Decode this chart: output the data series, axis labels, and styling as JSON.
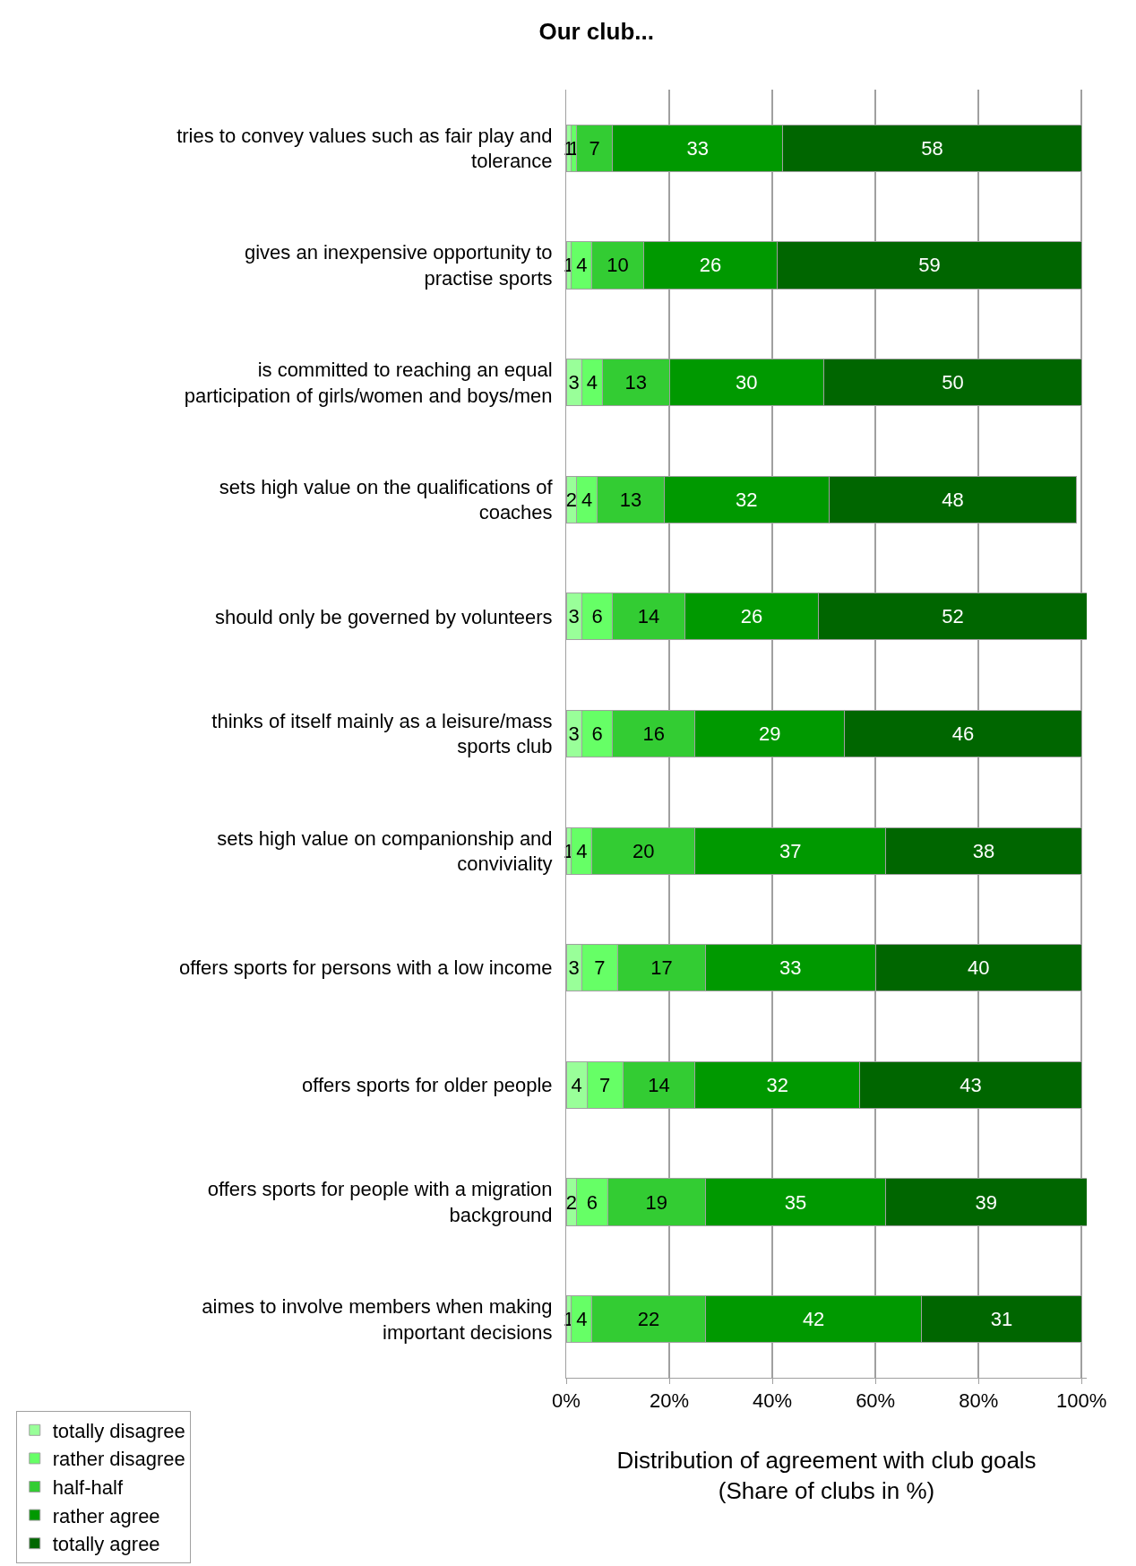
{
  "chart_data": {
    "type": "bar",
    "orientation": "horizontal",
    "stacked": true,
    "title": "Our club...",
    "xlabel": "Distribution of agreement with club goals\n(Share of clubs in %)",
    "categories": [
      "tries to convey values such as fair play and\ntolerance",
      "gives an inexpensive opportunity to\npractise sports",
      "is committed to reaching an equal\nparticipation of girls/women and boys/men",
      "sets high value on the qualifications of\ncoaches",
      "should only be governed by volunteers",
      "thinks of itself mainly as a leisure/mass\nsports club",
      "sets high value on companionship and\nconviviality",
      "offers sports for persons with a low income",
      "offers sports for older people",
      "offers sports for people with a migration\nbackground",
      "aimes to involve members when making\nimportant decisions"
    ],
    "series": [
      {
        "name": "totally disagree",
        "color": "#99ff99",
        "values": [
          1,
          1,
          3,
          2,
          3,
          3,
          1,
          3,
          4,
          2,
          1
        ]
      },
      {
        "name": "rather disagree",
        "color": "#66ff66",
        "values": [
          1,
          4,
          4,
          4,
          6,
          6,
          4,
          7,
          7,
          6,
          4
        ]
      },
      {
        "name": "half-half",
        "color": "#33cc33",
        "values": [
          7,
          10,
          13,
          13,
          14,
          16,
          20,
          17,
          14,
          19,
          22
        ]
      },
      {
        "name": "rather agree",
        "color": "#009900",
        "values": [
          33,
          26,
          30,
          32,
          26,
          29,
          37,
          33,
          32,
          35,
          42
        ]
      },
      {
        "name": "totally agree",
        "color": "#006600",
        "values": [
          58,
          59,
          50,
          48,
          52,
          46,
          38,
          40,
          43,
          39,
          31
        ]
      }
    ],
    "xlim": [
      0,
      101
    ],
    "xticks": [
      {
        "value": 0,
        "label": "0%"
      },
      {
        "value": 20,
        "label": "20%"
      },
      {
        "value": 40,
        "label": "40%"
      },
      {
        "value": 60,
        "label": "60%"
      },
      {
        "value": 80,
        "label": "80%"
      },
      {
        "value": 100,
        "label": "100%"
      }
    ],
    "grid": "x",
    "legend": "bottom left",
    "data_labels": true
  }
}
